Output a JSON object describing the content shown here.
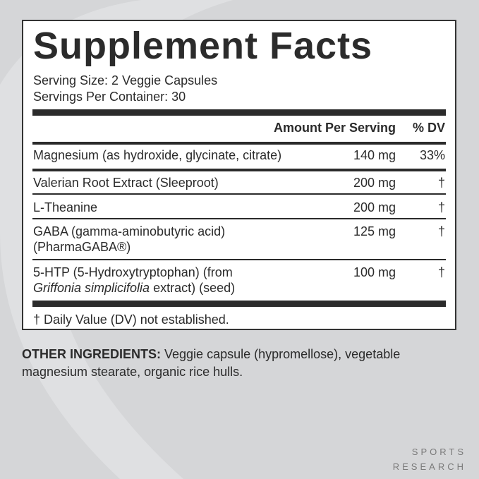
{
  "title": "Supplement Facts",
  "serving_size": "Serving Size: 2 Veggie Capsules",
  "servings_per_container": "Servings Per Container: 30",
  "headers": {
    "amount": "Amount Per Serving",
    "dv": "% DV"
  },
  "rows": [
    {
      "name": "Magnesium (as hydroxide, glycinate, citrate)",
      "amount": "140 mg",
      "dv": "33%"
    },
    {
      "name": "Valerian Root Extract (Sleeproot)",
      "amount": "200 mg",
      "dv": "†"
    },
    {
      "name": "L-Theanine",
      "amount": "200 mg",
      "dv": "†"
    },
    {
      "name": "GABA (gamma-aminobutyric acid)",
      "name2": "(PharmaGABA®)",
      "amount": "125 mg",
      "dv": "†"
    },
    {
      "name": "5-HTP (5-Hydroxytryptophan) (from",
      "name2_italic": "Griffonia simplicifolia",
      "name2_rest": " extract) (seed)",
      "amount": "100 mg",
      "dv": "†"
    }
  ],
  "footnote": "† Daily Value (DV) not established.",
  "other_label": "OTHER INGREDIENTS:",
  "other_text": " Veggie capsule (hypromellose), vegetable magnesium stearate, organic rice hulls.",
  "brand": {
    "line1": "SPORTS",
    "line2": "RESEARCH"
  }
}
